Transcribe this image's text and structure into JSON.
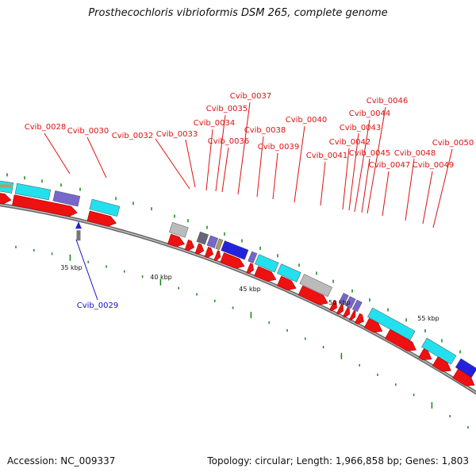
{
  "title": "Prosthecochloris vibrioformis DSM 265, complete genome",
  "accession": "Accession: NC_009337",
  "summary": "Topology: circular; Length: 1,966,858 bp; Genes: 1,803",
  "colors": {
    "forward_gene": "#ee1111",
    "reverse_gene": "#2222cc",
    "cyan_feature": "#22e0ee",
    "purple_feature": "#7766cc",
    "blue_feature": "#2222dd",
    "grey_feature": "#bbbbbb",
    "label_red": "#dd1111",
    "label_blue": "#1111cc",
    "tick_green": "#118811",
    "backbone": "#888888"
  },
  "ruler": [
    {
      "label": "35 kbp"
    },
    {
      "label": "40 kbp"
    },
    {
      "label": "45 kbp"
    },
    {
      "label": "50 kbp"
    },
    {
      "label": "55 kbp"
    }
  ],
  "gene_labels": [
    {
      "text": "Cvib_0028",
      "strand": "forward"
    },
    {
      "text": "Cvib_0029",
      "strand": "reverse"
    },
    {
      "text": "Cvib_0030",
      "strand": "forward"
    },
    {
      "text": "Cvib_0032",
      "strand": "forward"
    },
    {
      "text": "Cvib_0033",
      "strand": "forward"
    },
    {
      "text": "Cvib_0034",
      "strand": "forward"
    },
    {
      "text": "Cvib_0035",
      "strand": "forward"
    },
    {
      "text": "Cvib_0036",
      "strand": "forward"
    },
    {
      "text": "Cvib_0037",
      "strand": "forward"
    },
    {
      "text": "Cvib_0038",
      "strand": "forward"
    },
    {
      "text": "Cvib_0039",
      "strand": "forward"
    },
    {
      "text": "Cvib_0040",
      "strand": "forward"
    },
    {
      "text": "Cvib_0041",
      "strand": "forward"
    },
    {
      "text": "Cvib_0042",
      "strand": "forward"
    },
    {
      "text": "Cvib_0043",
      "strand": "forward"
    },
    {
      "text": "Cvib_0044",
      "strand": "forward"
    },
    {
      "text": "Cvib_0045",
      "strand": "forward"
    },
    {
      "text": "Cvib_0046",
      "strand": "forward"
    },
    {
      "text": "Cvib_0047",
      "strand": "forward"
    },
    {
      "text": "Cvib_0048",
      "strand": "forward"
    },
    {
      "text": "Cvib_0049",
      "strand": "forward"
    },
    {
      "text": "Cvib_0050",
      "strand": "forward"
    }
  ]
}
